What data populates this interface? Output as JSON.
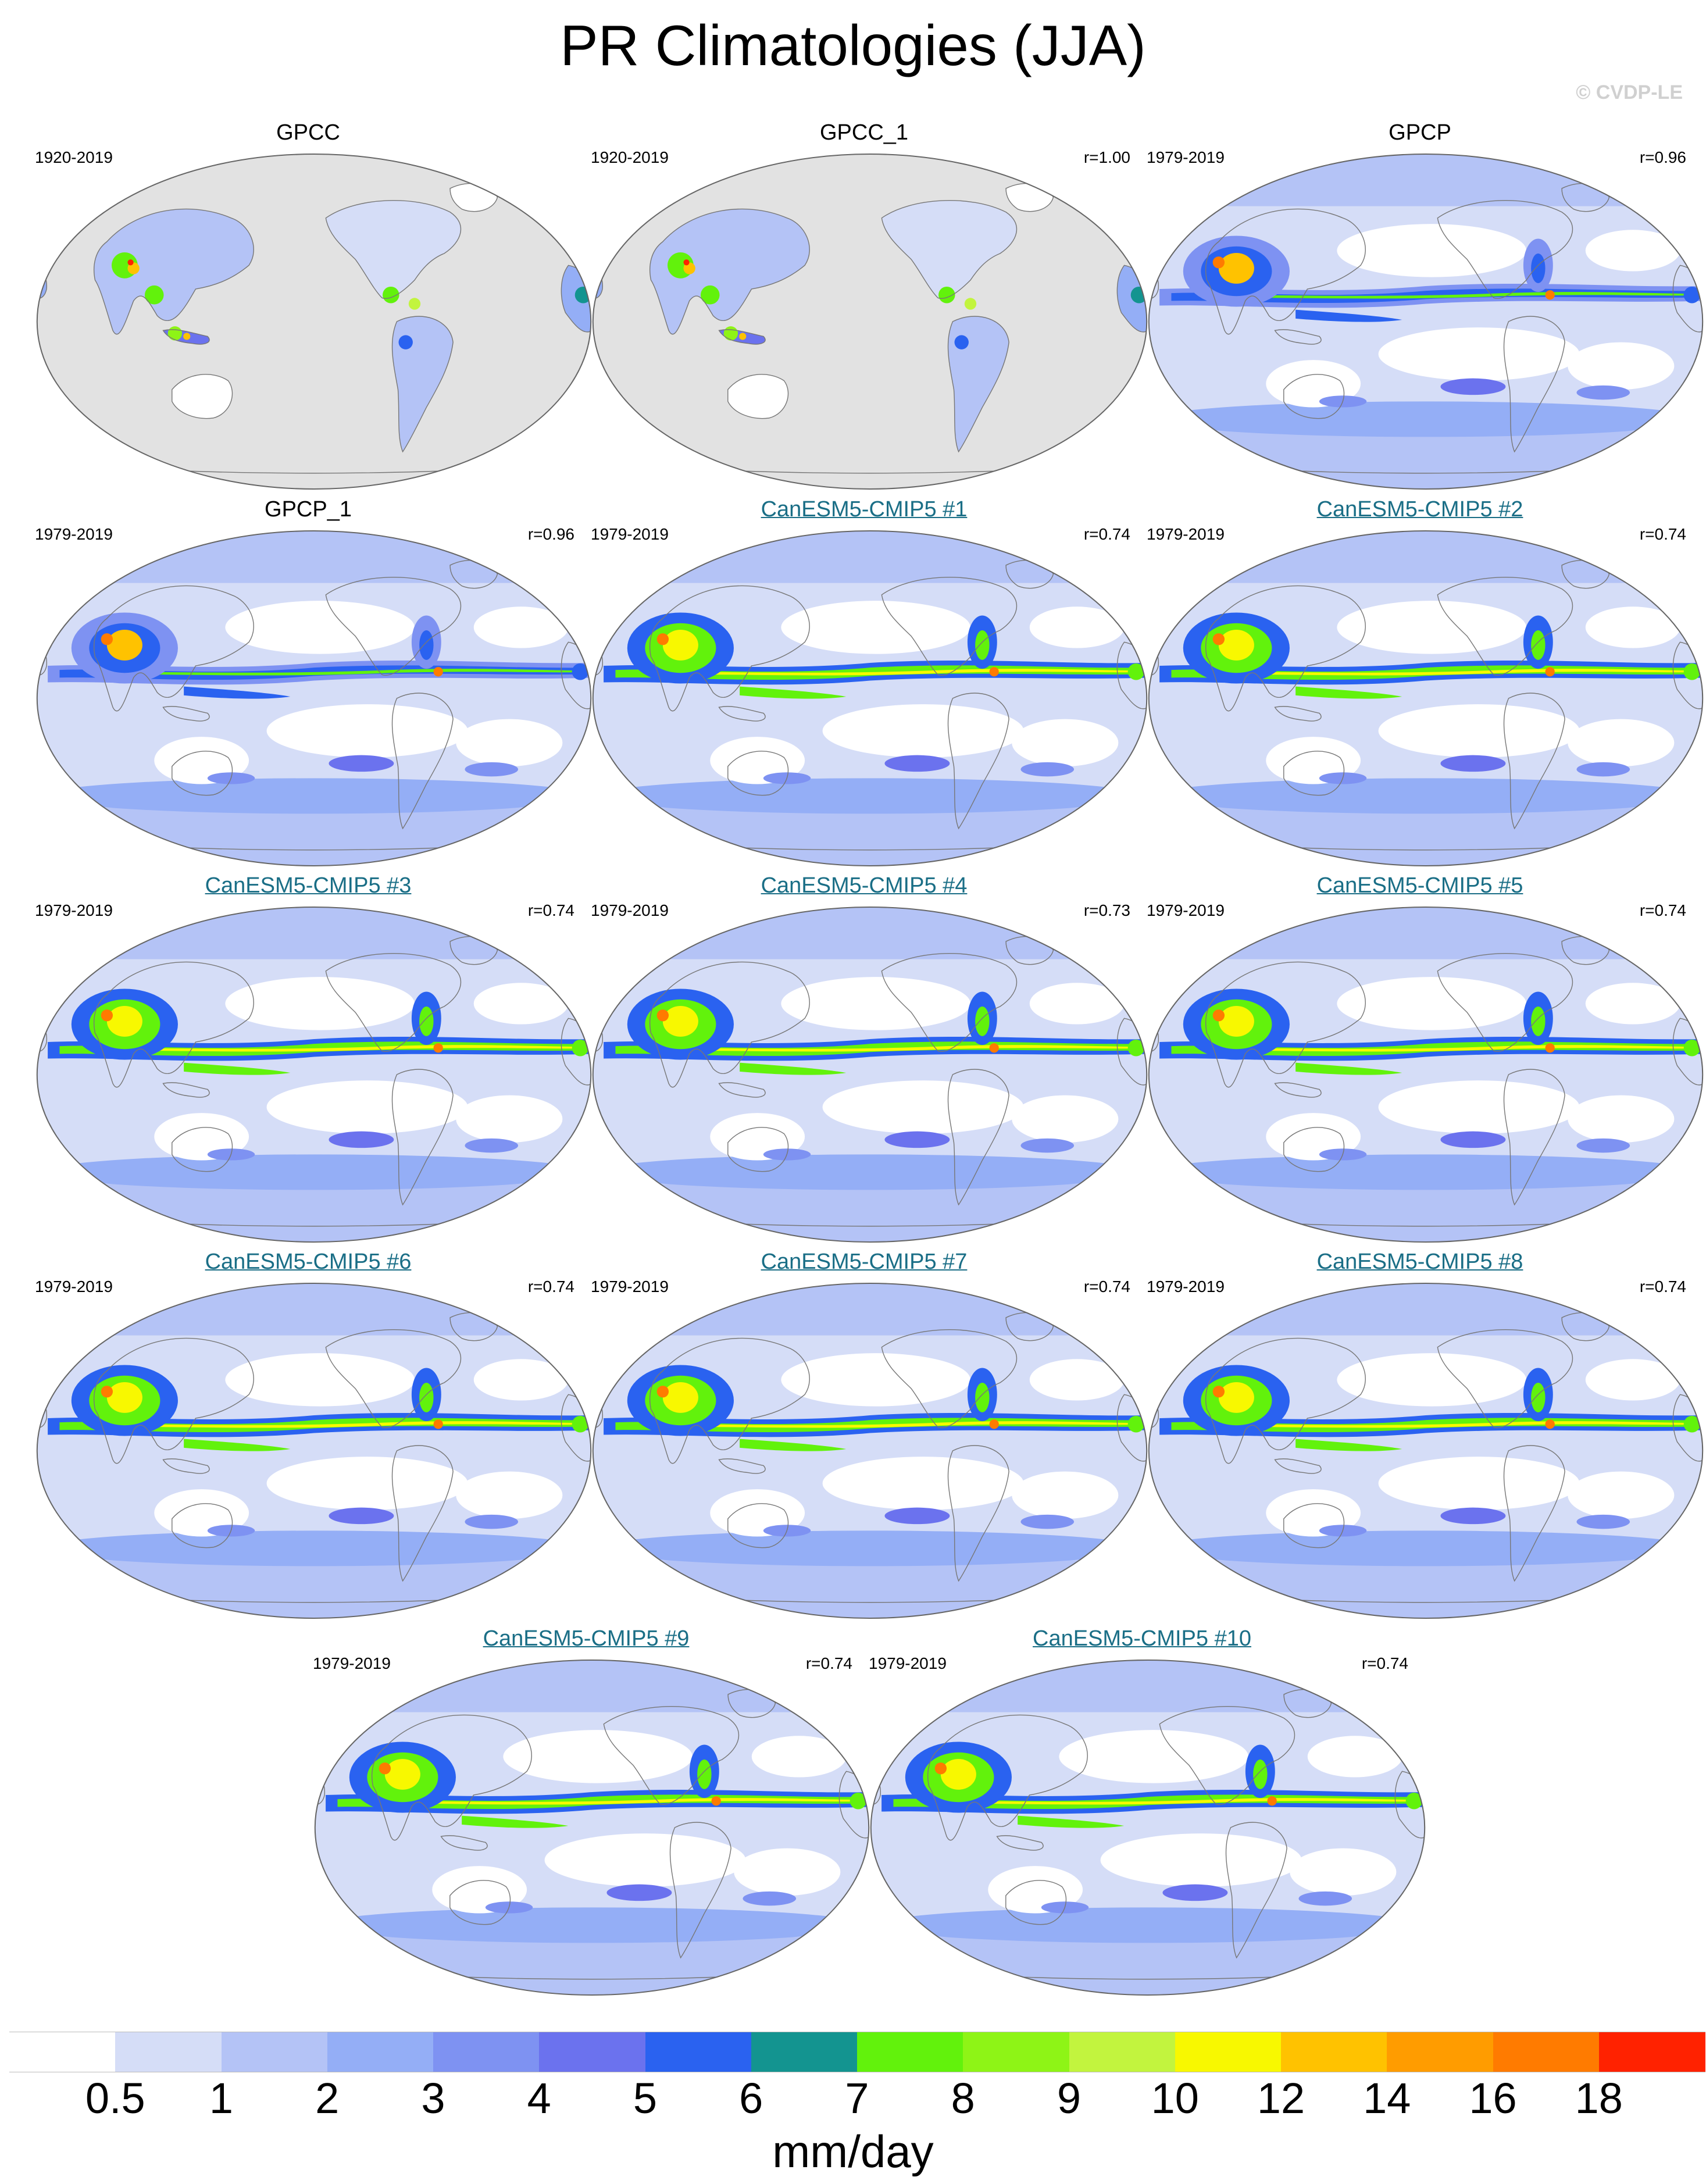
{
  "title": "PR Climatologies (JJA)",
  "watermark": "© CVDP-LE",
  "colors": {
    "ocean_obs": "#e2e2e2",
    "model_title": "#1a6e86",
    "scale": [
      "#ffffff",
      "#d5ddf7",
      "#b4c3f6",
      "#94aef6",
      "#7e92f2",
      "#6b72ee",
      "#2a62f0",
      "#139490",
      "#62f20c",
      "#8ef416",
      "#c2f43e",
      "#f8f800",
      "#ffc200",
      "#ff9c00",
      "#ff7b00",
      "#ff2200"
    ]
  },
  "panels": [
    {
      "title": "GPCC",
      "years": "1920-2019",
      "corr": "",
      "type": "obs"
    },
    {
      "title": "GPCC_1",
      "years": "1920-2019",
      "corr": "r=1.00",
      "type": "obs"
    },
    {
      "title": "GPCP",
      "years": "1979-2019",
      "corr": "r=0.96",
      "type": "global"
    },
    {
      "title": "GPCP_1",
      "years": "1979-2019",
      "corr": "r=0.96",
      "type": "global"
    },
    {
      "title": "CanESM5-CMIP5 #1",
      "years": "1979-2019",
      "corr": "r=0.74",
      "type": "model"
    },
    {
      "title": "CanESM5-CMIP5 #2",
      "years": "1979-2019",
      "corr": "r=0.74",
      "type": "model"
    },
    {
      "title": "CanESM5-CMIP5 #3",
      "years": "1979-2019",
      "corr": "r=0.74",
      "type": "model"
    },
    {
      "title": "CanESM5-CMIP5 #4",
      "years": "1979-2019",
      "corr": "r=0.73",
      "type": "model"
    },
    {
      "title": "CanESM5-CMIP5 #5",
      "years": "1979-2019",
      "corr": "r=0.74",
      "type": "model"
    },
    {
      "title": "CanESM5-CMIP5 #6",
      "years": "1979-2019",
      "corr": "r=0.74",
      "type": "model"
    },
    {
      "title": "CanESM5-CMIP5 #7",
      "years": "1979-2019",
      "corr": "r=0.74",
      "type": "model"
    },
    {
      "title": "CanESM5-CMIP5 #8",
      "years": "1979-2019",
      "corr": "r=0.74",
      "type": "model"
    },
    {
      "title": "CanESM5-CMIP5 #9",
      "years": "1979-2019",
      "corr": "r=0.74",
      "type": "model"
    },
    {
      "title": "CanESM5-CMIP5 #10",
      "years": "1979-2019",
      "corr": "r=0.74",
      "type": "model"
    }
  ],
  "colorbar": {
    "labels": [
      "0.5",
      "1",
      "2",
      "3",
      "4",
      "5",
      "6",
      "7",
      "8",
      "9",
      "10",
      "12",
      "14",
      "16",
      "18"
    ],
    "units": "mm/day"
  }
}
